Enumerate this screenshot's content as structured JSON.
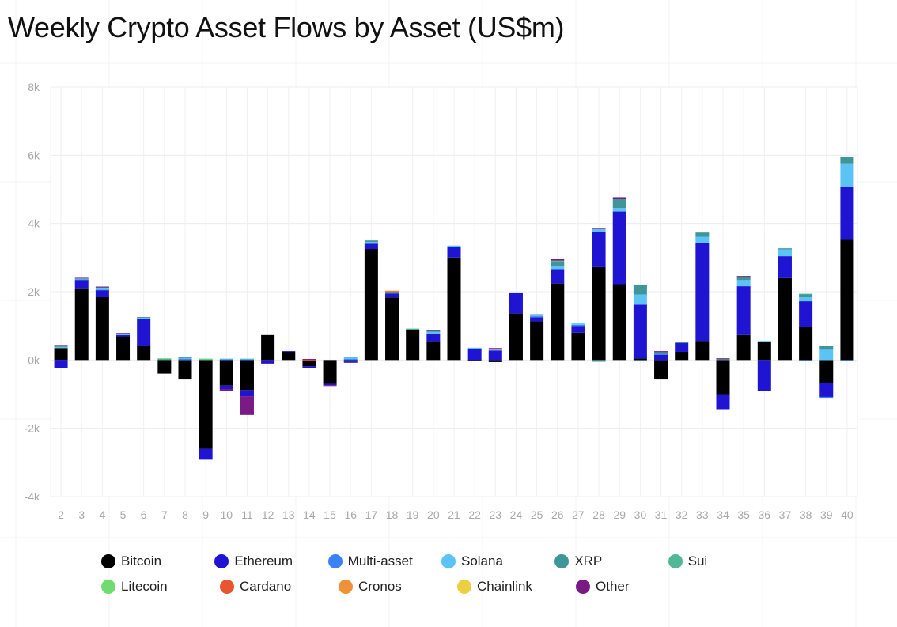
{
  "title": "Weekly Crypto Asset Flows by Asset (US$m)",
  "legend": [
    {
      "name": "Bitcoin",
      "color": "#000000"
    },
    {
      "name": "Ethereum",
      "color": "#1e14d2"
    },
    {
      "name": "Multi-asset",
      "color": "#3b82f6"
    },
    {
      "name": "Solana",
      "color": "#5bc4f5"
    },
    {
      "name": "XRP",
      "color": "#3f9597"
    },
    {
      "name": "Sui",
      "color": "#52b893"
    },
    {
      "name": "Litecoin",
      "color": "#6fdc6f"
    },
    {
      "name": "Cardano",
      "color": "#e8552f"
    },
    {
      "name": "Cronos",
      "color": "#f0913a"
    },
    {
      "name": "Chainlink",
      "color": "#ecd040"
    },
    {
      "name": "Other",
      "color": "#7a1a85"
    }
  ],
  "chart_data": {
    "type": "bar",
    "stacked": true,
    "title": "Weekly Crypto Asset Flows by Asset (US$m)",
    "xlabel": "",
    "ylabel": "",
    "ylim": [
      -4000,
      8000
    ],
    "yticks": [
      -4000,
      -2000,
      0,
      2000,
      4000,
      6000,
      8000
    ],
    "ytick_labels": [
      "-4k",
      "-2k",
      "0k",
      "2k",
      "4k",
      "6k",
      "8k"
    ],
    "grid": true,
    "legend_position": "bottom",
    "categories": [
      "2",
      "3",
      "4",
      "5",
      "6",
      "7",
      "8",
      "9",
      "10",
      "11",
      "12",
      "13",
      "14",
      "15",
      "16",
      "17",
      "18",
      "19",
      "20",
      "21",
      "22",
      "23",
      "24",
      "25",
      "26",
      "27",
      "28",
      "29",
      "30",
      "31",
      "32",
      "33",
      "34",
      "35",
      "36",
      "37",
      "38",
      "39",
      "40"
    ],
    "series": [
      {
        "name": "Bitcoin",
        "color": "#000000",
        "values": [
          350,
          2100,
          1850,
          690,
          420,
          -400,
          -550,
          -2600,
          -750,
          -880,
          730,
          240,
          -180,
          -700,
          -40,
          3250,
          1830,
          880,
          550,
          3000,
          -30,
          -60,
          1360,
          1130,
          2240,
          800,
          2720,
          2220,
          50,
          -550,
          240,
          560,
          -1000,
          730,
          520,
          2420,
          970,
          -680,
          3540
        ]
      },
      {
        "name": "Ethereum",
        "color": "#1e14d2",
        "values": [
          -240,
          250,
          200,
          40,
          780,
          0,
          0,
          -320,
          -100,
          -180,
          -100,
          20,
          -50,
          -40,
          -40,
          180,
          120,
          0,
          220,
          300,
          320,
          280,
          600,
          120,
          420,
          200,
          1020,
          2130,
          1570,
          150,
          260,
          2880,
          -440,
          1430,
          -900,
          620,
          750,
          -400,
          1520
        ]
      },
      {
        "name": "Multi-asset",
        "color": "#3b82f6",
        "values": [
          0,
          10,
          10,
          0,
          20,
          0,
          40,
          0,
          20,
          20,
          0,
          0,
          0,
          0,
          30,
          0,
          0,
          0,
          0,
          0,
          20,
          0,
          20,
          30,
          0,
          30,
          0,
          0,
          -20,
          20,
          0,
          0,
          0,
          0,
          20,
          0,
          -30,
          -50,
          -20
        ]
      },
      {
        "name": "Solana",
        "color": "#5bc4f5",
        "values": [
          40,
          20,
          50,
          20,
          20,
          0,
          20,
          0,
          20,
          20,
          0,
          0,
          0,
          0,
          40,
          30,
          30,
          0,
          60,
          50,
          20,
          20,
          0,
          40,
          80,
          40,
          90,
          100,
          300,
          0,
          0,
          170,
          0,
          180,
          20,
          200,
          140,
          300,
          700
        ]
      },
      {
        "name": "XRP",
        "color": "#3f9597",
        "values": [
          20,
          20,
          30,
          20,
          20,
          20,
          20,
          0,
          0,
          0,
          0,
          0,
          0,
          0,
          30,
          40,
          20,
          20,
          20,
          0,
          0,
          0,
          0,
          20,
          140,
          0,
          -50,
          260,
          290,
          60,
          20,
          120,
          30,
          100,
          0,
          30,
          60,
          120,
          200
        ]
      },
      {
        "name": "Sui",
        "color": "#52b893",
        "values": [
          0,
          0,
          0,
          0,
          0,
          20,
          0,
          30,
          0,
          0,
          0,
          0,
          0,
          0,
          0,
          30,
          0,
          20,
          0,
          0,
          0,
          0,
          0,
          0,
          30,
          0,
          20,
          0,
          0,
          0,
          0,
          30,
          0,
          0,
          0,
          0,
          20,
          0,
          0
        ]
      },
      {
        "name": "Litecoin",
        "color": "#6fdc6f",
        "values": [
          0,
          0,
          0,
          0,
          0,
          10,
          0,
          10,
          0,
          0,
          0,
          0,
          0,
          0,
          0,
          0,
          0,
          0,
          0,
          0,
          0,
          0,
          0,
          0,
          0,
          0,
          0,
          0,
          0,
          0,
          0,
          0,
          0,
          0,
          0,
          0,
          0,
          0,
          0
        ]
      },
      {
        "name": "Cardano",
        "color": "#e8552f",
        "values": [
          0,
          10,
          0,
          10,
          0,
          0,
          0,
          0,
          0,
          0,
          0,
          0,
          10,
          0,
          0,
          0,
          20,
          0,
          0,
          0,
          0,
          30,
          0,
          0,
          0,
          0,
          0,
          0,
          0,
          0,
          0,
          0,
          0,
          0,
          0,
          0,
          0,
          0,
          0
        ]
      },
      {
        "name": "Cronos",
        "color": "#f0913a",
        "values": [
          0,
          0,
          0,
          0,
          0,
          0,
          0,
          0,
          0,
          0,
          0,
          0,
          0,
          0,
          0,
          0,
          10,
          0,
          0,
          0,
          0,
          0,
          0,
          0,
          0,
          0,
          0,
          0,
          0,
          0,
          0,
          0,
          0,
          0,
          0,
          0,
          0,
          0,
          0
        ]
      },
      {
        "name": "Chainlink",
        "color": "#ecd040",
        "values": [
          0,
          0,
          0,
          0,
          0,
          0,
          0,
          0,
          0,
          0,
          0,
          0,
          0,
          0,
          0,
          0,
          0,
          0,
          0,
          0,
          0,
          0,
          0,
          0,
          0,
          0,
          0,
          0,
          0,
          0,
          0,
          0,
          0,
          0,
          0,
          0,
          0,
          0,
          0
        ]
      },
      {
        "name": "Other",
        "color": "#7a1a85",
        "values": [
          30,
          20,
          10,
          10,
          0,
          0,
          0,
          0,
          -60,
          -550,
          -30,
          0,
          20,
          -10,
          0,
          0,
          0,
          0,
          30,
          0,
          0,
          20,
          0,
          0,
          40,
          0,
          20,
          60,
          0,
          30,
          20,
          0,
          20,
          20,
          0,
          0,
          0,
          0,
          0
        ]
      }
    ]
  }
}
